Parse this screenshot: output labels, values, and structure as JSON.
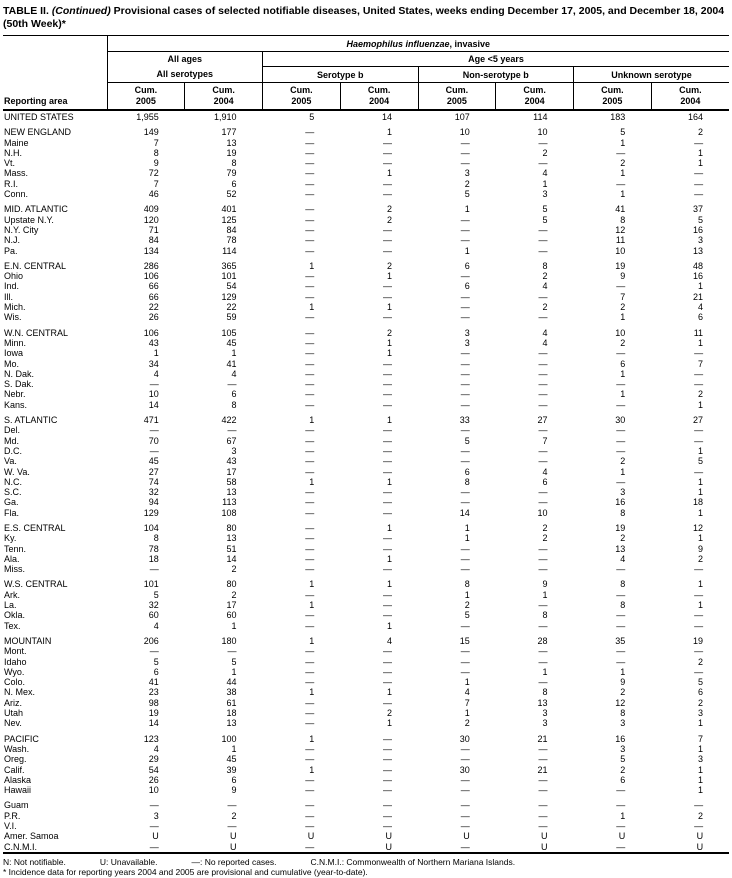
{
  "title": {
    "label": "TABLE II.",
    "continued": "(Continued)",
    "text": "Provisional cases of selected notifiable diseases, United States, weeks ending December 17, 2005, and December 18, 2004 (50th Week)*"
  },
  "header": {
    "reporting_area": "Reporting area",
    "disease_italic": "Haemophilus influenzae",
    "disease_rest": ", invasive",
    "all_ages": "All ages",
    "age_under5": "Age <5 years",
    "groups": [
      "All serotypes",
      "Serotype b",
      "Non-serotype b",
      "Unknown serotype"
    ],
    "col_label": "Cum.",
    "years": [
      "2005",
      "2004"
    ]
  },
  "rows": [
    {
      "area": "UNITED STATES",
      "values": [
        "1,955",
        "1,910",
        "5",
        "14",
        "107",
        "114",
        "183",
        "164"
      ]
    },
    {
      "spacer": true
    },
    {
      "area": "NEW ENGLAND",
      "values": [
        "149",
        "177",
        "—",
        "1",
        "10",
        "10",
        "5",
        "2"
      ]
    },
    {
      "area": "Maine",
      "values": [
        "7",
        "13",
        "—",
        "—",
        "—",
        "—",
        "1",
        "—"
      ]
    },
    {
      "area": "N.H.",
      "values": [
        "8",
        "19",
        "—",
        "—",
        "—",
        "2",
        "—",
        "1"
      ]
    },
    {
      "area": "Vt.",
      "values": [
        "9",
        "8",
        "—",
        "—",
        "—",
        "—",
        "2",
        "1"
      ]
    },
    {
      "area": "Mass.",
      "values": [
        "72",
        "79",
        "—",
        "1",
        "3",
        "4",
        "1",
        "—"
      ]
    },
    {
      "area": "R.I.",
      "values": [
        "7",
        "6",
        "—",
        "—",
        "2",
        "1",
        "—",
        "—"
      ]
    },
    {
      "area": "Conn.",
      "values": [
        "46",
        "52",
        "—",
        "—",
        "5",
        "3",
        "1",
        "—"
      ]
    },
    {
      "spacer": true
    },
    {
      "area": "MID. ATLANTIC",
      "values": [
        "409",
        "401",
        "—",
        "2",
        "1",
        "5",
        "41",
        "37"
      ]
    },
    {
      "area": "Upstate N.Y.",
      "values": [
        "120",
        "125",
        "—",
        "2",
        "—",
        "5",
        "8",
        "5"
      ]
    },
    {
      "area": "N.Y. City",
      "values": [
        "71",
        "84",
        "—",
        "—",
        "—",
        "—",
        "12",
        "16"
      ]
    },
    {
      "area": "N.J.",
      "values": [
        "84",
        "78",
        "—",
        "—",
        "—",
        "—",
        "11",
        "3"
      ]
    },
    {
      "area": "Pa.",
      "values": [
        "134",
        "114",
        "—",
        "—",
        "1",
        "—",
        "10",
        "13"
      ]
    },
    {
      "spacer": true
    },
    {
      "area": "E.N. CENTRAL",
      "values": [
        "286",
        "365",
        "1",
        "2",
        "6",
        "8",
        "19",
        "48"
      ]
    },
    {
      "area": "Ohio",
      "values": [
        "106",
        "101",
        "—",
        "1",
        "—",
        "2",
        "9",
        "16"
      ]
    },
    {
      "area": "Ind.",
      "values": [
        "66",
        "54",
        "—",
        "—",
        "6",
        "4",
        "—",
        "1"
      ]
    },
    {
      "area": "Ill.",
      "values": [
        "66",
        "129",
        "—",
        "—",
        "—",
        "—",
        "7",
        "21"
      ]
    },
    {
      "area": "Mich.",
      "values": [
        "22",
        "22",
        "1",
        "1",
        "—",
        "2",
        "2",
        "4"
      ]
    },
    {
      "area": "Wis.",
      "values": [
        "26",
        "59",
        "—",
        "—",
        "—",
        "—",
        "1",
        "6"
      ]
    },
    {
      "spacer": true
    },
    {
      "area": "W.N. CENTRAL",
      "values": [
        "106",
        "105",
        "—",
        "2",
        "3",
        "4",
        "10",
        "11"
      ]
    },
    {
      "area": "Minn.",
      "values": [
        "43",
        "45",
        "—",
        "1",
        "3",
        "4",
        "2",
        "1"
      ]
    },
    {
      "area": "Iowa",
      "values": [
        "1",
        "1",
        "—",
        "1",
        "—",
        "—",
        "—",
        "—"
      ]
    },
    {
      "area": "Mo.",
      "values": [
        "34",
        "41",
        "—",
        "—",
        "—",
        "—",
        "6",
        "7"
      ]
    },
    {
      "area": "N. Dak.",
      "values": [
        "4",
        "4",
        "—",
        "—",
        "—",
        "—",
        "1",
        "—"
      ]
    },
    {
      "area": "S. Dak.",
      "values": [
        "—",
        "—",
        "—",
        "—",
        "—",
        "—",
        "—",
        "—"
      ]
    },
    {
      "area": "Nebr.",
      "values": [
        "10",
        "6",
        "—",
        "—",
        "—",
        "—",
        "1",
        "2"
      ]
    },
    {
      "area": "Kans.",
      "values": [
        "14",
        "8",
        "—",
        "—",
        "—",
        "—",
        "—",
        "1"
      ]
    },
    {
      "spacer": true
    },
    {
      "area": "S. ATLANTIC",
      "values": [
        "471",
        "422",
        "1",
        "1",
        "33",
        "27",
        "30",
        "27"
      ]
    },
    {
      "area": "Del.",
      "values": [
        "—",
        "—",
        "—",
        "—",
        "—",
        "—",
        "—",
        "—"
      ]
    },
    {
      "area": "Md.",
      "values": [
        "70",
        "67",
        "—",
        "—",
        "5",
        "7",
        "—",
        "—"
      ]
    },
    {
      "area": "D.C.",
      "values": [
        "—",
        "3",
        "—",
        "—",
        "—",
        "—",
        "—",
        "1"
      ]
    },
    {
      "area": "Va.",
      "values": [
        "45",
        "43",
        "—",
        "—",
        "—",
        "—",
        "2",
        "5"
      ]
    },
    {
      "area": "W. Va.",
      "values": [
        "27",
        "17",
        "—",
        "—",
        "6",
        "4",
        "1",
        "—"
      ]
    },
    {
      "area": "N.C.",
      "values": [
        "74",
        "58",
        "1",
        "1",
        "8",
        "6",
        "—",
        "1"
      ]
    },
    {
      "area": "S.C.",
      "values": [
        "32",
        "13",
        "—",
        "—",
        "—",
        "—",
        "3",
        "1"
      ]
    },
    {
      "area": "Ga.",
      "values": [
        "94",
        "113",
        "—",
        "—",
        "—",
        "—",
        "16",
        "18"
      ]
    },
    {
      "area": "Fla.",
      "values": [
        "129",
        "108",
        "—",
        "—",
        "14",
        "10",
        "8",
        "1"
      ]
    },
    {
      "spacer": true
    },
    {
      "area": "E.S. CENTRAL",
      "values": [
        "104",
        "80",
        "—",
        "1",
        "1",
        "2",
        "19",
        "12"
      ]
    },
    {
      "area": "Ky.",
      "values": [
        "8",
        "13",
        "—",
        "—",
        "1",
        "2",
        "2",
        "1"
      ]
    },
    {
      "area": "Tenn.",
      "values": [
        "78",
        "51",
        "—",
        "—",
        "—",
        "—",
        "13",
        "9"
      ]
    },
    {
      "area": "Ala.",
      "values": [
        "18",
        "14",
        "—",
        "1",
        "—",
        "—",
        "4",
        "2"
      ]
    },
    {
      "area": "Miss.",
      "values": [
        "—",
        "2",
        "—",
        "—",
        "—",
        "—",
        "—",
        "—"
      ]
    },
    {
      "spacer": true
    },
    {
      "area": "W.S. CENTRAL",
      "values": [
        "101",
        "80",
        "1",
        "1",
        "8",
        "9",
        "8",
        "1"
      ]
    },
    {
      "area": "Ark.",
      "values": [
        "5",
        "2",
        "—",
        "—",
        "1",
        "1",
        "—",
        "—"
      ]
    },
    {
      "area": "La.",
      "values": [
        "32",
        "17",
        "1",
        "—",
        "2",
        "—",
        "8",
        "1"
      ]
    },
    {
      "area": "Okla.",
      "values": [
        "60",
        "60",
        "—",
        "—",
        "5",
        "8",
        "—",
        "—"
      ]
    },
    {
      "area": "Tex.",
      "values": [
        "4",
        "1",
        "—",
        "1",
        "—",
        "—",
        "—",
        "—"
      ]
    },
    {
      "spacer": true
    },
    {
      "area": "MOUNTAIN",
      "values": [
        "206",
        "180",
        "1",
        "4",
        "15",
        "28",
        "35",
        "19"
      ]
    },
    {
      "area": "Mont.",
      "values": [
        "—",
        "—",
        "—",
        "—",
        "—",
        "—",
        "—",
        "—"
      ]
    },
    {
      "area": "Idaho",
      "values": [
        "5",
        "5",
        "—",
        "—",
        "—",
        "—",
        "—",
        "2"
      ]
    },
    {
      "area": "Wyo.",
      "values": [
        "6",
        "1",
        "—",
        "—",
        "—",
        "1",
        "1",
        "—"
      ]
    },
    {
      "area": "Colo.",
      "values": [
        "41",
        "44",
        "—",
        "—",
        "1",
        "—",
        "9",
        "5"
      ]
    },
    {
      "area": "N. Mex.",
      "values": [
        "23",
        "38",
        "1",
        "1",
        "4",
        "8",
        "2",
        "6"
      ]
    },
    {
      "area": "Ariz.",
      "values": [
        "98",
        "61",
        "—",
        "—",
        "7",
        "13",
        "12",
        "2"
      ]
    },
    {
      "area": "Utah",
      "values": [
        "19",
        "18",
        "—",
        "2",
        "1",
        "3",
        "8",
        "3"
      ]
    },
    {
      "area": "Nev.",
      "values": [
        "14",
        "13",
        "—",
        "1",
        "2",
        "3",
        "3",
        "1"
      ]
    },
    {
      "spacer": true
    },
    {
      "area": "PACIFIC",
      "values": [
        "123",
        "100",
        "1",
        "—",
        "30",
        "21",
        "16",
        "7"
      ]
    },
    {
      "area": "Wash.",
      "values": [
        "4",
        "1",
        "—",
        "—",
        "—",
        "—",
        "3",
        "1"
      ]
    },
    {
      "area": "Oreg.",
      "values": [
        "29",
        "45",
        "—",
        "—",
        "—",
        "—",
        "5",
        "3"
      ]
    },
    {
      "area": "Calif.",
      "values": [
        "54",
        "39",
        "1",
        "—",
        "30",
        "21",
        "2",
        "1"
      ]
    },
    {
      "area": "Alaska",
      "values": [
        "26",
        "6",
        "—",
        "—",
        "—",
        "—",
        "6",
        "1"
      ]
    },
    {
      "area": "Hawaii",
      "values": [
        "10",
        "9",
        "—",
        "—",
        "—",
        "—",
        "—",
        "1"
      ]
    },
    {
      "spacer": true
    },
    {
      "area": "Guam",
      "values": [
        "—",
        "—",
        "—",
        "—",
        "—",
        "—",
        "—",
        "—"
      ]
    },
    {
      "area": "P.R.",
      "values": [
        "3",
        "2",
        "—",
        "—",
        "—",
        "—",
        "1",
        "2"
      ]
    },
    {
      "area": "V.I.",
      "values": [
        "—",
        "—",
        "—",
        "—",
        "—",
        "—",
        "—",
        "—"
      ]
    },
    {
      "area": "Amer. Samoa",
      "values": [
        "U",
        "U",
        "U",
        "U",
        "U",
        "U",
        "U",
        "U"
      ]
    },
    {
      "area": "C.N.M.I.",
      "values": [
        "—",
        "U",
        "—",
        "U",
        "—",
        "U",
        "—",
        "U"
      ]
    }
  ],
  "footnotes": {
    "legend": [
      "N: Not notifiable.",
      "U: Unavailable.",
      "—: No reported cases.",
      "C.N.M.I.: Commonwealth of Northern Mariana Islands."
    ],
    "asterisk": "* Incidence data for reporting years 2004 and 2005 are provisional and cumulative (year-to-date)."
  }
}
